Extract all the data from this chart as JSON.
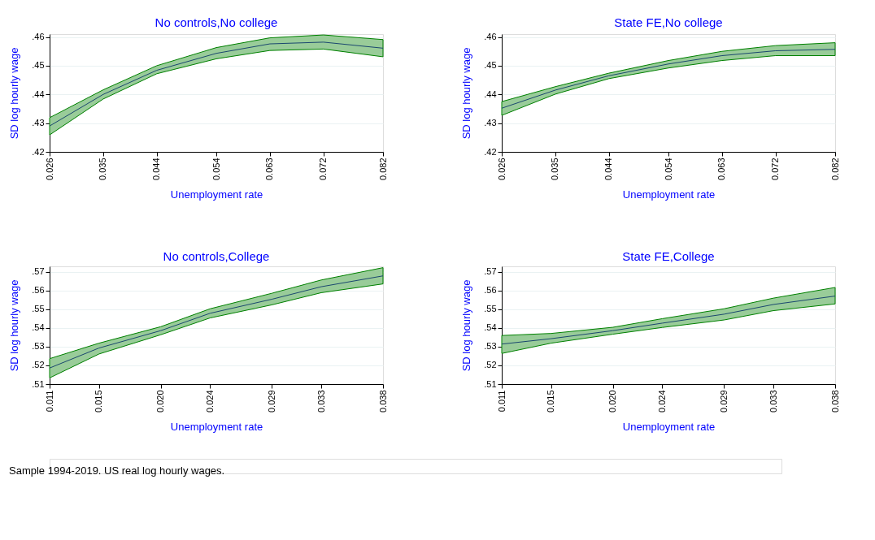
{
  "chart_data": [
    {
      "type": "line",
      "title": "No controls,No college",
      "xlabel": "Unemployment rate",
      "ylabel": "SD log hourly wage",
      "x": [
        0.026,
        0.035,
        0.044,
        0.054,
        0.063,
        0.072,
        0.082
      ],
      "series": [
        {
          "color": "#1a476f",
          "values": [
            0.429,
            0.44,
            0.4484,
            0.4543,
            0.4576,
            0.4582,
            0.4561
          ],
          "lower": [
            0.4259,
            0.4384,
            0.4472,
            0.4524,
            0.4553,
            0.4558,
            0.4531
          ],
          "upper": [
            0.4319,
            0.4416,
            0.45,
            0.4563,
            0.4597,
            0.4607,
            0.4591
          ]
        }
      ],
      "xlim": [
        0.026,
        0.082
      ],
      "xticks": [
        0.026,
        0.035,
        0.044,
        0.054,
        0.063,
        0.072,
        0.082
      ],
      "ylim": [
        0.42,
        0.461
      ],
      "yticks": [
        {
          "value": 0.42,
          "label": ".42"
        },
        {
          "value": 0.43,
          "label": ".43"
        },
        {
          "value": 0.44,
          "label": ".44"
        },
        {
          "value": 0.45,
          "label": ".45"
        },
        {
          "value": 0.46,
          "label": ".46"
        }
      ],
      "grid": "y",
      "marker": "none",
      "line_style": "solid"
    },
    {
      "type": "line",
      "title": "State FE,No college",
      "xlabel": "Unemployment rate",
      "ylabel": "SD log hourly wage",
      "x": [
        0.026,
        0.035,
        0.044,
        0.054,
        0.063,
        0.072,
        0.082
      ],
      "series": [
        {
          "color": "#1a476f",
          "values": [
            0.4352,
            0.4415,
            0.4465,
            0.4506,
            0.4535,
            0.4552,
            0.4557
          ],
          "lower": [
            0.4327,
            0.4401,
            0.4455,
            0.4492,
            0.4518,
            0.4535,
            0.4535
          ],
          "upper": [
            0.4375,
            0.4427,
            0.4474,
            0.4518,
            0.455,
            0.457,
            0.458
          ]
        }
      ],
      "xlim": [
        0.026,
        0.082
      ],
      "xticks": [
        0.026,
        0.035,
        0.044,
        0.054,
        0.063,
        0.072,
        0.082
      ],
      "ylim": [
        0.42,
        0.461
      ],
      "yticks": [
        {
          "value": 0.42,
          "label": ".42"
        },
        {
          "value": 0.43,
          "label": ".43"
        },
        {
          "value": 0.44,
          "label": ".44"
        },
        {
          "value": 0.45,
          "label": ".45"
        },
        {
          "value": 0.46,
          "label": ".46"
        }
      ],
      "grid": "y",
      "marker": "none",
      "line_style": "solid"
    },
    {
      "type": "line",
      "title": "No controls,College",
      "xlabel": "Unemployment rate",
      "ylabel": "SD log hourly wage",
      "x": [
        0.011,
        0.015,
        0.02,
        0.024,
        0.029,
        0.033,
        0.038
      ],
      "series": [
        {
          "color": "#1a476f",
          "values": [
            0.5186,
            0.5293,
            0.5386,
            0.5479,
            0.5554,
            0.5621,
            0.5679
          ],
          "lower": [
            0.5133,
            0.5261,
            0.5364,
            0.5454,
            0.5524,
            0.5589,
            0.5636
          ],
          "upper": [
            0.5236,
            0.5319,
            0.5407,
            0.5503,
            0.5586,
            0.5657,
            0.5723
          ]
        }
      ],
      "xlim": [
        0.011,
        0.038
      ],
      "xticks": [
        0.011,
        0.015,
        {
          "value": 0.02,
          "label": "0.020"
        },
        0.024,
        0.029,
        0.033,
        0.038
      ],
      "ylim": [
        0.51,
        0.573
      ],
      "yticks": [
        {
          "value": 0.51,
          "label": ".51"
        },
        {
          "value": 0.52,
          "label": ".52"
        },
        {
          "value": 0.53,
          "label": ".53"
        },
        {
          "value": 0.54,
          "label": ".54"
        },
        {
          "value": 0.55,
          "label": ".55"
        },
        {
          "value": 0.56,
          "label": ".56"
        },
        {
          "value": 0.57,
          "label": ".57"
        }
      ],
      "grid": "y",
      "marker": "none",
      "line_style": "solid",
      "annotations": [
        "Sample 1994-2019. US real log hourly wages."
      ]
    },
    {
      "type": "line",
      "title": "State FE,College",
      "xlabel": "Unemployment rate",
      "ylabel": "SD log hourly wage",
      "x": [
        0.011,
        0.015,
        0.02,
        0.024,
        0.029,
        0.033,
        0.038
      ],
      "series": [
        {
          "color": "#1a476f",
          "values": [
            0.5314,
            0.5343,
            0.5386,
            0.5426,
            0.5474,
            0.5526,
            0.5571
          ],
          "lower": [
            0.5264,
            0.5319,
            0.5367,
            0.5403,
            0.5443,
            0.5493,
            0.5529
          ],
          "upper": [
            0.536,
            0.5371,
            0.5404,
            0.545,
            0.5503,
            0.556,
            0.5617
          ]
        }
      ],
      "xlim": [
        0.011,
        0.038
      ],
      "xticks": [
        0.011,
        0.015,
        {
          "value": 0.02,
          "label": "0.020"
        },
        0.024,
        0.029,
        0.033,
        0.038
      ],
      "ylim": [
        0.51,
        0.573
      ],
      "yticks": [
        {
          "value": 0.51,
          "label": ".51"
        },
        {
          "value": 0.52,
          "label": ".52"
        },
        {
          "value": 0.53,
          "label": ".53"
        },
        {
          "value": 0.54,
          "label": ".54"
        },
        {
          "value": 0.55,
          "label": ".55"
        },
        {
          "value": 0.56,
          "label": ".56"
        },
        {
          "value": 0.57,
          "label": ".57"
        }
      ],
      "grid": "y",
      "marker": "none",
      "line_style": "solid"
    }
  ]
}
